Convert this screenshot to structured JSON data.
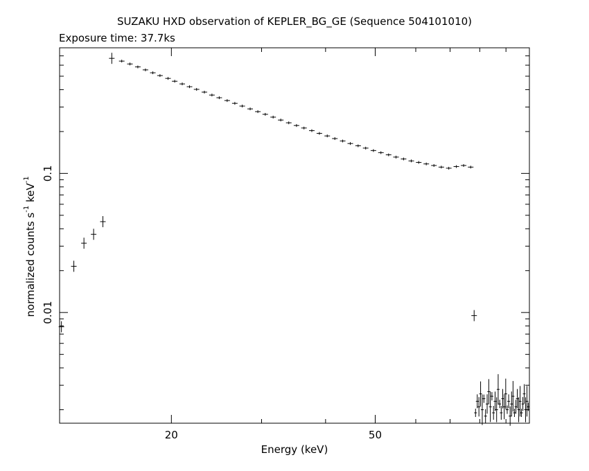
{
  "chart_data": {
    "type": "scatter",
    "title": "SUZAKU HXD observation of KEPLER_BG_GE (Sequence 504101010)",
    "subtitle": "Exposure time: 37.7ks",
    "xlabel": "Energy (keV)",
    "ylabel_parts": [
      "normalized counts s",
      "-1",
      " keV",
      "-1"
    ],
    "x_scale": "log",
    "y_scale": "log",
    "xlim": [
      12.1,
      100
    ],
    "ylim": [
      0.0016,
      0.8
    ],
    "x_ticks": [
      20,
      50
    ],
    "y_ticks": [
      0.01,
      0.1
    ],
    "x_tick_labels": [
      "20",
      "50"
    ],
    "y_tick_labels": [
      "0.01",
      "0.1"
    ],
    "grid": false,
    "series": [
      {
        "marker": "cross",
        "points": [
          [
            12.2,
            0.0079
          ],
          [
            12.9,
            0.0215
          ],
          [
            13.5,
            0.0315
          ],
          [
            14.1,
            0.0365
          ],
          [
            14.7,
            0.045
          ],
          [
            15.3,
            0.672
          ],
          [
            16.0,
            0.642
          ],
          [
            16.6,
            0.612
          ],
          [
            17.2,
            0.583
          ],
          [
            17.8,
            0.555
          ],
          [
            18.4,
            0.529
          ],
          [
            19.0,
            0.505
          ],
          [
            19.7,
            0.482
          ],
          [
            20.3,
            0.46
          ],
          [
            21.0,
            0.44
          ],
          [
            21.7,
            0.42
          ],
          [
            22.4,
            0.402
          ],
          [
            23.2,
            0.384
          ],
          [
            24.0,
            0.366
          ],
          [
            24.8,
            0.35
          ],
          [
            25.7,
            0.334
          ],
          [
            26.6,
            0.319
          ],
          [
            27.5,
            0.305
          ],
          [
            28.5,
            0.291
          ],
          [
            29.5,
            0.278
          ],
          [
            30.5,
            0.266
          ],
          [
            31.6,
            0.254
          ],
          [
            32.7,
            0.242
          ],
          [
            33.9,
            0.231
          ],
          [
            35.1,
            0.221
          ],
          [
            36.3,
            0.212
          ],
          [
            37.6,
            0.203
          ],
          [
            38.9,
            0.194
          ],
          [
            40.3,
            0.186
          ],
          [
            41.7,
            0.178
          ],
          [
            43.2,
            0.171
          ],
          [
            44.7,
            0.164
          ],
          [
            46.3,
            0.158
          ],
          [
            47.9,
            0.152
          ],
          [
            49.6,
            0.146
          ],
          [
            51.3,
            0.141
          ],
          [
            53.1,
            0.136
          ],
          [
            54.9,
            0.131
          ],
          [
            56.8,
            0.127
          ],
          [
            58.8,
            0.123
          ],
          [
            60.8,
            0.12
          ],
          [
            62.9,
            0.117
          ],
          [
            65.1,
            0.114
          ],
          [
            67.3,
            0.111
          ],
          [
            69.6,
            0.109
          ],
          [
            72.0,
            0.112
          ],
          [
            74.4,
            0.114
          ],
          [
            76.8,
            0.111
          ]
        ]
      },
      {
        "marker": "cross",
        "points": [
          [
            78.0,
            0.0095
          ]
        ]
      },
      {
        "marker": "cross",
        "noisy": true,
        "points": [
          [
            78.5,
            0.0019
          ],
          [
            79.1,
            0.0023
          ],
          [
            79.7,
            0.0021
          ],
          [
            80.3,
            0.0026
          ],
          [
            80.9,
            0.002
          ],
          [
            81.5,
            0.0024
          ],
          [
            82.1,
            0.0018
          ],
          [
            82.7,
            0.0022
          ],
          [
            83.3,
            0.0027
          ],
          [
            83.9,
            0.0021
          ],
          [
            84.5,
            0.0025
          ],
          [
            85.1,
            0.0019
          ],
          [
            85.7,
            0.0023
          ],
          [
            86.3,
            0.002
          ],
          [
            86.9,
            0.0028
          ],
          [
            87.5,
            0.0022
          ],
          [
            88.1,
            0.0019
          ],
          [
            88.7,
            0.0024
          ],
          [
            89.3,
            0.0021
          ],
          [
            89.9,
            0.0026
          ],
          [
            90.5,
            0.002
          ],
          [
            91.1,
            0.0023
          ],
          [
            91.7,
            0.0018
          ],
          [
            92.3,
            0.0022
          ],
          [
            92.9,
            0.0025
          ],
          [
            93.5,
            0.0019
          ],
          [
            94.1,
            0.0021
          ],
          [
            94.7,
            0.0024
          ],
          [
            95.3,
            0.002
          ],
          [
            95.9,
            0.0023
          ],
          [
            96.5,
            0.0019
          ],
          [
            97.1,
            0.0022
          ],
          [
            97.7,
            0.0026
          ],
          [
            98.3,
            0.002
          ],
          [
            98.9,
            0.0023
          ],
          [
            99.5,
            0.0021
          ]
        ]
      }
    ]
  }
}
